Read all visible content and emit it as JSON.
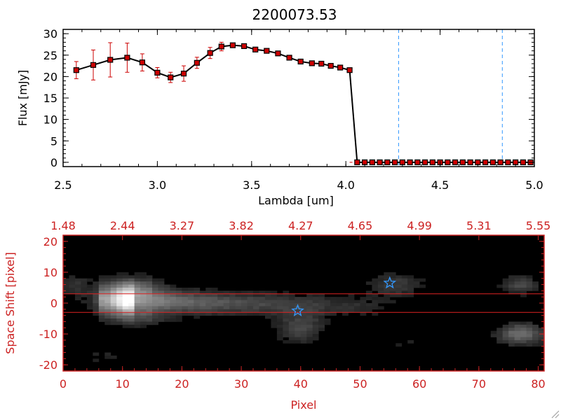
{
  "chart_data": [
    {
      "type": "line",
      "title": "2200073.53",
      "xlabel": "Lambda [um]",
      "ylabel": "Flux [mJy]",
      "xlim": [
        2.5,
        5.0
      ],
      "ylim": [
        -1,
        31
      ],
      "xticks": [
        "2.5",
        "3.0",
        "3.5",
        "4.0",
        "4.5",
        "5.0"
      ],
      "xtick_values": [
        2.5,
        3.0,
        3.5,
        4.0,
        4.5,
        5.0
      ],
      "yticks": [
        "0",
        "5",
        "10",
        "15",
        "20",
        "25",
        "30"
      ],
      "ytick_values": [
        0,
        5,
        10,
        15,
        20,
        25,
        30
      ],
      "series": [
        {
          "x": [
            2.57,
            2.66,
            2.75,
            2.84,
            2.92,
            3.0,
            3.07,
            3.14,
            3.21,
            3.28,
            3.34,
            3.4,
            3.46,
            3.52,
            3.58,
            3.64,
            3.7,
            3.76,
            3.82,
            3.87,
            3.92,
            3.97,
            4.02,
            4.06,
            4.1,
            4.14,
            4.18,
            4.22,
            4.26,
            4.3,
            4.34,
            4.38,
            4.42,
            4.46,
            4.5,
            4.54,
            4.58,
            4.62,
            4.66,
            4.7,
            4.74,
            4.78,
            4.82,
            4.86,
            4.9,
            4.94,
            4.98
          ],
          "y": [
            21.5,
            22.7,
            23.9,
            24.4,
            23.3,
            20.9,
            19.8,
            20.7,
            23.2,
            25.5,
            27.0,
            27.3,
            27.1,
            26.3,
            26.0,
            25.4,
            24.4,
            23.5,
            23.1,
            23.0,
            22.5,
            22.1,
            21.5,
            0,
            0,
            0,
            0,
            0,
            0,
            0,
            0,
            0,
            0,
            0,
            0,
            0,
            0,
            0,
            0,
            0,
            0,
            0,
            0,
            0,
            0,
            0,
            0
          ],
          "yerr": [
            2.0,
            3.5,
            4.0,
            3.4,
            2.0,
            1.2,
            1.2,
            1.8,
            1.3,
            1.3,
            1.0,
            0.5,
            0.4,
            0.4,
            0.3,
            0.3,
            0.3,
            0.3,
            0.3,
            0.3,
            0.3,
            0.3,
            0.3,
            0,
            0,
            0,
            0,
            0,
            0,
            0,
            0,
            0,
            0,
            0,
            0,
            0,
            0,
            0,
            0,
            0,
            0,
            0,
            0,
            0,
            0,
            0,
            0
          ],
          "color": "#000000",
          "marker_color": "#cc0000",
          "errorbar_color": "#cc0000"
        }
      ],
      "vlines": [
        {
          "x": 4.28,
          "color": "#3399ff",
          "style": "dashed"
        },
        {
          "x": 4.83,
          "color": "#3399ff",
          "style": "dashed"
        }
      ],
      "hline": {
        "y": 0,
        "color": "#cc0000",
        "style": "dashed",
        "x_from": 4.02
      }
    },
    {
      "type": "heatmap",
      "xlabel": "Pixel",
      "ylabel": "Space Shift [pixel]",
      "xlim": [
        0,
        81
      ],
      "ylim": [
        -22,
        22
      ],
      "xticks": [
        "0",
        "10",
        "20",
        "30",
        "40",
        "50",
        "60",
        "70",
        "80"
      ],
      "xtick_values": [
        0,
        10,
        20,
        30,
        40,
        50,
        60,
        70,
        80
      ],
      "yticks": [
        "-20",
        "-10",
        "0",
        "10",
        "20"
      ],
      "ytick_values": [
        -20,
        -10,
        0,
        10,
        20
      ],
      "top_axis_ticks": [
        "1.48",
        "2.44",
        "3.27",
        "3.82",
        "4.27",
        "4.65",
        "4.99",
        "5.31",
        "5.55"
      ],
      "top_axis_values": [
        0,
        10,
        20,
        30,
        40,
        50,
        60,
        70,
        80
      ],
      "axis_color": "#cc2222",
      "colormap": "gray",
      "extraction_aperture": {
        "y_lower": -3,
        "y_upper": 3,
        "color": "#dd2222"
      },
      "markers": [
        {
          "x": 39.5,
          "y": -2.5,
          "symbol": "star",
          "color": "#3399ff"
        },
        {
          "x": 55,
          "y": 6.5,
          "symbol": "star",
          "color": "#3399ff"
        }
      ]
    }
  ]
}
